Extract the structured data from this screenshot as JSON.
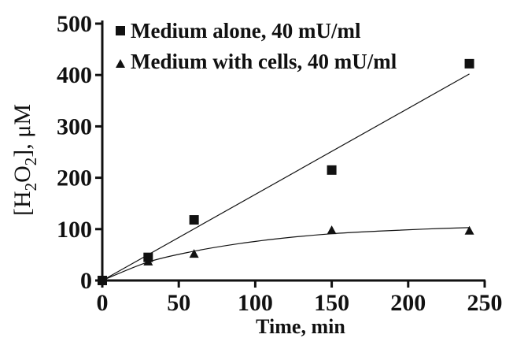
{
  "chart_data": {
    "type": "scatter",
    "title": "",
    "xlabel": "Time, min",
    "ylabel": {
      "prefix": "[H",
      "sub1": "2",
      "mid": "O",
      "sub2": "2",
      "suffix": "], μM"
    },
    "xlim": [
      0,
      250
    ],
    "ylim": [
      0,
      500
    ],
    "xticks": [
      0,
      50,
      100,
      150,
      200,
      250
    ],
    "yticks": [
      0,
      100,
      200,
      300,
      400,
      500
    ],
    "grid": false,
    "legend_position": "top-left",
    "series": [
      {
        "name": "Medium alone, 40 mU/ml",
        "marker": "square",
        "color": "#111111",
        "x": [
          0,
          30,
          60,
          150,
          240
        ],
        "y": [
          0,
          45,
          118,
          215,
          422
        ],
        "fit": {
          "kind": "linear",
          "x": [
            0,
            240
          ],
          "y": [
            0,
            402
          ]
        }
      },
      {
        "name": "Medium with cells, 40 mU/ml",
        "marker": "triangle",
        "color": "#111111",
        "x": [
          0,
          30,
          60,
          150,
          240
        ],
        "y": [
          0,
          37,
          52,
          98,
          97
        ],
        "fit": {
          "kind": "saturating",
          "x": [
            0,
            30,
            60,
            90,
            120,
            150,
            180,
            210,
            240
          ],
          "y": [
            0,
            36,
            57,
            72,
            83,
            91,
            96,
            100,
            103
          ]
        }
      }
    ]
  }
}
